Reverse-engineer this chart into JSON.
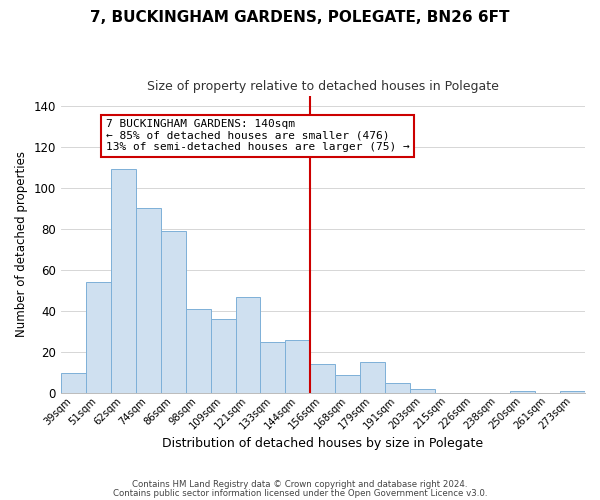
{
  "title": "7, BUCKINGHAM GARDENS, POLEGATE, BN26 6FT",
  "subtitle": "Size of property relative to detached houses in Polegate",
  "xlabel": "Distribution of detached houses by size in Polegate",
  "ylabel": "Number of detached properties",
  "bar_labels": [
    "39sqm",
    "51sqm",
    "62sqm",
    "74sqm",
    "86sqm",
    "98sqm",
    "109sqm",
    "121sqm",
    "133sqm",
    "144sqm",
    "156sqm",
    "168sqm",
    "179sqm",
    "191sqm",
    "203sqm",
    "215sqm",
    "226sqm",
    "238sqm",
    "250sqm",
    "261sqm",
    "273sqm"
  ],
  "bar_heights": [
    10,
    54,
    109,
    90,
    79,
    41,
    36,
    47,
    25,
    26,
    14,
    9,
    15,
    5,
    2,
    0,
    0,
    0,
    1,
    0,
    1
  ],
  "bar_color": "#cfe0f0",
  "bar_edge_color": "#7db0d8",
  "vline_index": 9,
  "vline_color": "#cc0000",
  "ylim": [
    0,
    145
  ],
  "yticks": [
    0,
    20,
    40,
    60,
    80,
    100,
    120,
    140
  ],
  "annotation_title": "7 BUCKINGHAM GARDENS: 140sqm",
  "annotation_line1": "← 85% of detached houses are smaller (476)",
  "annotation_line2": "13% of semi-detached houses are larger (75) →",
  "annotation_box_color": "#ffffff",
  "annotation_box_edge": "#cc0000",
  "footer1": "Contains HM Land Registry data © Crown copyright and database right 2024.",
  "footer2": "Contains public sector information licensed under the Open Government Licence v3.0.",
  "background_color": "#ffffff",
  "grid_color": "#d0d0d0"
}
